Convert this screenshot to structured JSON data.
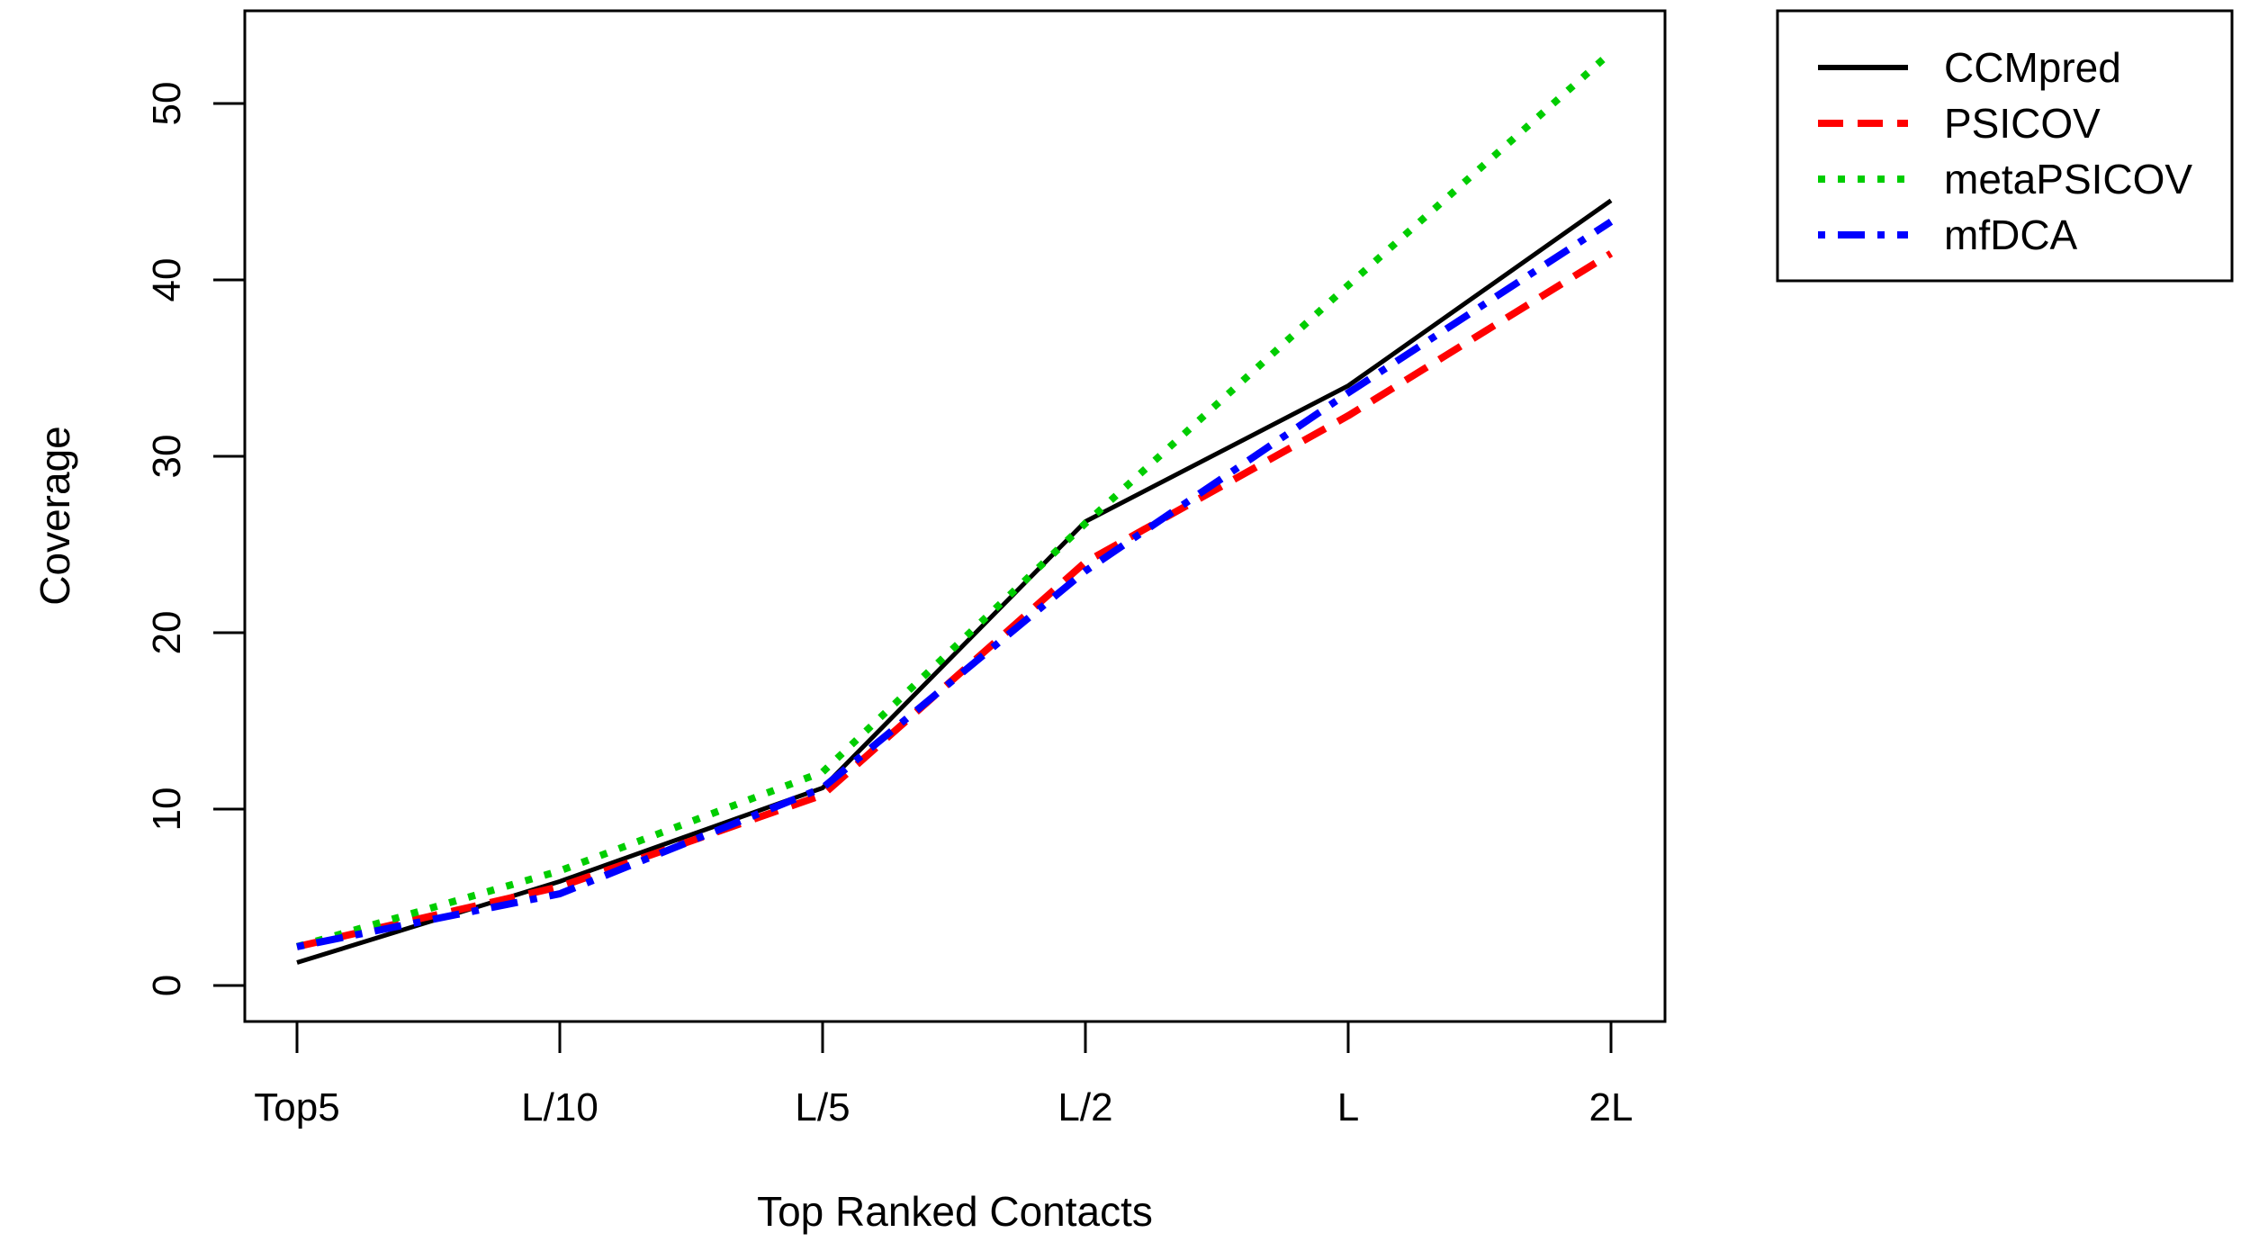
{
  "chart_data": {
    "type": "line",
    "title": "",
    "xlabel": "Top Ranked Contacts",
    "ylabel": "Coverage",
    "categories": [
      "Top5",
      "L/10",
      "L/5",
      "L/2",
      "L",
      "2L"
    ],
    "ylim": [
      -2,
      55
    ],
    "yticks": [
      0,
      10,
      20,
      30,
      40,
      50
    ],
    "grid": false,
    "legend_position": "top-right, outside plot area",
    "series": [
      {
        "name": "CCMpred",
        "color": "#000000",
        "dash": "solid",
        "values": [
          1.3,
          5.9,
          11.2,
          26.3,
          34.0,
          44.5
        ]
      },
      {
        "name": "PSICOV",
        "color": "#ff0000",
        "dash": "dashed",
        "values": [
          2.2,
          5.6,
          10.8,
          24.0,
          32.3,
          41.5
        ]
      },
      {
        "name": "metaPSICOV",
        "color": "#00cd00",
        "dash": "dotted",
        "values": [
          2.2,
          6.5,
          12.1,
          26.2,
          39.7,
          52.9
        ]
      },
      {
        "name": "mfDCA",
        "color": "#0000ff",
        "dash": "dotdash",
        "values": [
          2.2,
          5.2,
          11.2,
          23.5,
          33.6,
          43.3
        ]
      }
    ]
  }
}
